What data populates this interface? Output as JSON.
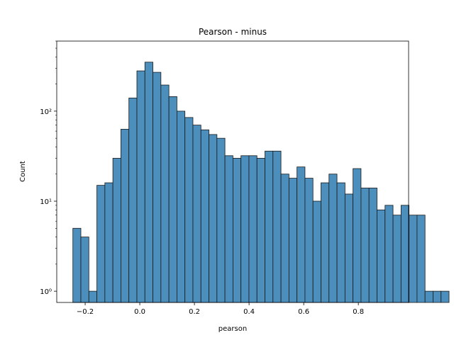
{
  "chart_data": {
    "type": "bar",
    "title": "Pearson - minus",
    "xlabel": "pearson",
    "ylabel": "Count",
    "y_scale": "log",
    "xlim": [
      -0.304,
      0.984
    ],
    "ylim": [
      0.75,
      600
    ],
    "bar_color": "#4c8fbd",
    "edge_color": "#1a1a1a",
    "bin_start": -0.245,
    "bin_width": 0.0293,
    "values": [
      5,
      4,
      1,
      15,
      16,
      30,
      63,
      140,
      280,
      350,
      270,
      195,
      145,
      100,
      85,
      70,
      62,
      55,
      50,
      32,
      30,
      32,
      32,
      30,
      36,
      36,
      20,
      18,
      24,
      18,
      10,
      16,
      20,
      16,
      12,
      23,
      14,
      14,
      8,
      9,
      7,
      9,
      7,
      7,
      1,
      1,
      1
    ],
    "x_ticks": [
      {
        "value": -0.2,
        "label": "−0.2"
      },
      {
        "value": 0.0,
        "label": "0.0"
      },
      {
        "value": 0.2,
        "label": "0.2"
      },
      {
        "value": 0.4,
        "label": "0.4"
      },
      {
        "value": 0.6,
        "label": "0.6"
      },
      {
        "value": 0.8,
        "label": "0.8"
      }
    ],
    "y_ticks": [
      {
        "value": 1,
        "label": "10⁰"
      },
      {
        "value": 10,
        "label": "10¹"
      },
      {
        "value": 100,
        "label": "10²"
      }
    ]
  }
}
